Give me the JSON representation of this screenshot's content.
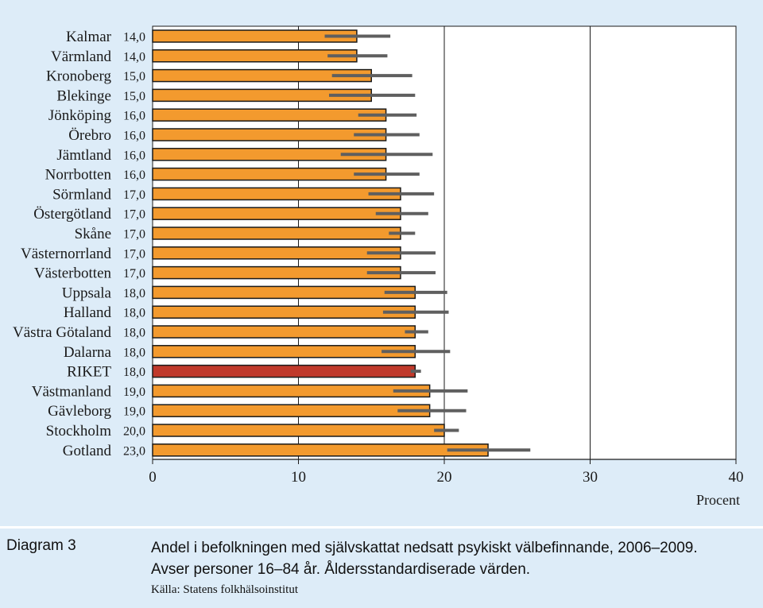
{
  "chart_data": {
    "type": "bar",
    "orientation": "horizontal",
    "categories": [
      "Kalmar",
      "Värmland",
      "Kronoberg",
      "Blekinge",
      "Jönköping",
      "Örebro",
      "Jämtland",
      "Norrbotten",
      "Sörmland",
      "Östergötland",
      "Skåne",
      "Västernorrland",
      "Västerbotten",
      "Uppsala",
      "Halland",
      "Västra Götaland",
      "Dalarna",
      "RIKET",
      "Västmanland",
      "Gävleborg",
      "Stockholm",
      "Gotland"
    ],
    "value_labels": [
      "14,0",
      "14,0",
      "15,0",
      "15,0",
      "16,0",
      "16,0",
      "16,0",
      "16,0",
      "17,0",
      "17,0",
      "17,0",
      "17,0",
      "17,0",
      "18,0",
      "18,0",
      "18,0",
      "18,0",
      "18,0",
      "19,0",
      "19,0",
      "20,0",
      "23,0"
    ],
    "values": [
      14,
      14,
      15,
      15,
      16,
      16,
      16,
      16,
      17,
      17,
      17,
      17,
      17,
      18,
      18,
      18,
      18,
      18,
      19,
      19,
      20,
      23
    ],
    "error_low": [
      11.8,
      12.0,
      12.3,
      12.1,
      14.1,
      13.8,
      12.9,
      13.8,
      14.8,
      15.3,
      16.2,
      14.7,
      14.7,
      15.9,
      15.8,
      17.3,
      15.7,
      17.7,
      16.5,
      16.8,
      19.3,
      20.2
    ],
    "error_high": [
      16.3,
      16.1,
      17.8,
      18.0,
      18.1,
      18.3,
      19.2,
      18.3,
      19.3,
      18.9,
      18.0,
      19.4,
      19.4,
      20.2,
      20.3,
      18.9,
      20.4,
      18.4,
      21.6,
      21.5,
      21.0,
      25.9
    ],
    "highlight_category": "RIKET",
    "xlim": [
      0,
      40
    ],
    "xticks": [
      0,
      10,
      20,
      30,
      40
    ],
    "xlabel": "Procent",
    "grid": true,
    "colors": {
      "bar": "#f39a2e",
      "highlight": "#c0392b",
      "bar_edge": "#1a1a1a",
      "error_bar": "#5f5f5f",
      "plot_background": "#ffffff",
      "page_background": "#ddecf8"
    }
  },
  "caption": {
    "diagram_label": "Diagram 3",
    "text": "Andel i befolkningen med självskattat nedsatt psykiskt välbefinnande, 2006–2009. Avser personer 16–84 år. Åldersstandardiserade värden.",
    "source": "Källa: Statens folkhälsoinstitut"
  }
}
